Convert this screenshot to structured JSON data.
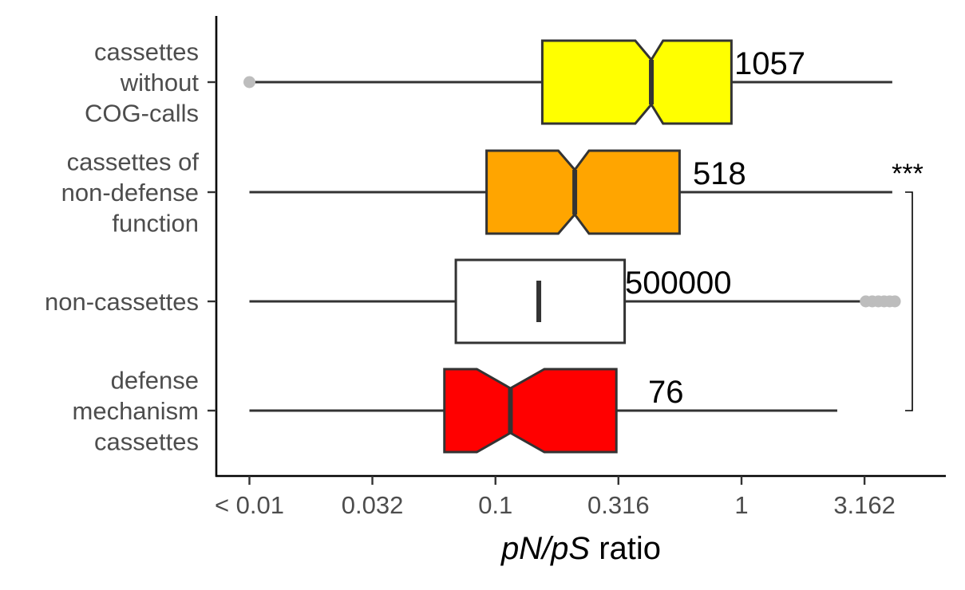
{
  "chart_data": {
    "type": "boxplot",
    "orientation": "horizontal",
    "x_scale": "log10",
    "xlim": [
      0.0072,
      7.0
    ],
    "xlabel_italic": "pN/pS",
    "xlabel_rest": " ratio",
    "x_ticks": [
      {
        "value": 0.01,
        "label": "< 0.01"
      },
      {
        "value": 0.0316,
        "label": "0.032"
      },
      {
        "value": 0.1,
        "label": "0.1"
      },
      {
        "value": 0.316,
        "label": "0.316"
      },
      {
        "value": 1,
        "label": "1"
      },
      {
        "value": 3.162,
        "label": "3.162"
      }
    ],
    "notched": true,
    "groups": [
      {
        "label_lines": [
          "cassettes",
          "without",
          "COG-calls"
        ],
        "color": "#ffff00",
        "notched": true,
        "whisker_low": 0.01,
        "q1": 0.155,
        "median": 0.43,
        "q3": 0.91,
        "whisker_high": 4.1,
        "notch_low": 0.37,
        "notch_high": 0.48,
        "outliers": [
          0.01
        ],
        "count": "1057"
      },
      {
        "label_lines": [
          "cassettes of",
          "non-defense",
          "function"
        ],
        "color": "#ffa500",
        "notched": true,
        "whisker_low": 0.01,
        "q1": 0.092,
        "median": 0.21,
        "q3": 0.56,
        "whisker_high": 4.1,
        "notch_low": 0.18,
        "notch_high": 0.24,
        "outliers": [],
        "count": "518"
      },
      {
        "label_lines": [
          "non-cassettes"
        ],
        "color": "#ffffff",
        "notched": false,
        "whisker_low": 0.01,
        "q1": 0.069,
        "median": 0.15,
        "q3": 0.335,
        "whisker_high": 3.2,
        "notch_low": 0.148,
        "notch_high": 0.152,
        "outliers": [
          3.2,
          3.4,
          3.6,
          3.8,
          4.0,
          4.2
        ],
        "count": "500000"
      },
      {
        "label_lines": [
          "defense",
          "mechanism",
          "cassettes"
        ],
        "color": "#ff0000",
        "notched": true,
        "whisker_low": 0.01,
        "q1": 0.062,
        "median": 0.115,
        "q3": 0.31,
        "whisker_high": 2.45,
        "notch_low": 0.084,
        "notch_high": 0.158,
        "outliers": [],
        "count": "76"
      }
    ],
    "significance": {
      "label": "***",
      "from_group": 1,
      "to_group": 3
    }
  }
}
